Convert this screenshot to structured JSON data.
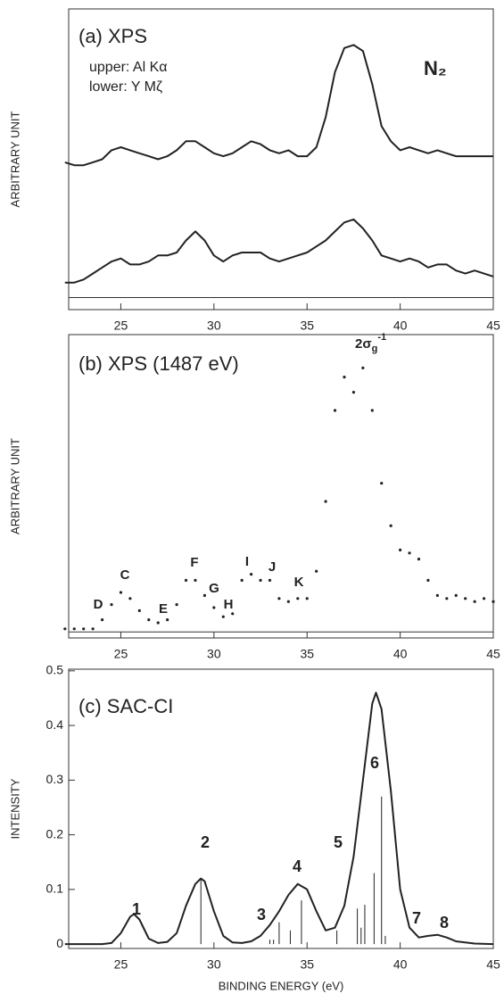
{
  "chart_data": [
    {
      "type": "line",
      "title": "(a) XPS",
      "subtitle": [
        "upper: Al Kα",
        "lower: Y Mζ"
      ],
      "label": "N₂",
      "ylabel": "ARBITRARY UNIT",
      "xlim": [
        22.2,
        45
      ],
      "xticks": [
        25,
        30,
        35,
        40,
        45
      ],
      "ylim": [
        -4,
        96
      ],
      "x": [
        22,
        22.5,
        23,
        23.5,
        24,
        24.5,
        25,
        25.5,
        26,
        26.5,
        27,
        27.5,
        28,
        28.5,
        29,
        29.5,
        30,
        30.5,
        31,
        31.5,
        32,
        32.5,
        33,
        33.5,
        34,
        34.5,
        35,
        35.5,
        36,
        36.5,
        37,
        37.5,
        38,
        38.5,
        39,
        39.5,
        40,
        40.5,
        41,
        41.5,
        42,
        42.5,
        43,
        43.5,
        44,
        44.5,
        45
      ],
      "series": [
        {
          "color": "#222222",
          "values": [
            45,
            44,
            44,
            45,
            46,
            49,
            50,
            49,
            48,
            47,
            46,
            47,
            49,
            52,
            52,
            50,
            48,
            47,
            48,
            50,
            52,
            51,
            49,
            48,
            49,
            47,
            47,
            50,
            60,
            75,
            83,
            84,
            82,
            71,
            57,
            52,
            49,
            50,
            49,
            48,
            49,
            48,
            47,
            47,
            47,
            47,
            47
          ]
        },
        {
          "color": "#222222",
          "values": [
            5,
            5,
            6,
            8,
            10,
            12,
            13,
            11,
            11,
            12,
            14,
            14,
            15,
            19,
            22,
            19,
            14,
            12,
            14,
            15,
            15,
            15,
            13,
            12,
            13,
            14,
            15,
            17,
            19,
            22,
            25,
            26,
            23,
            19,
            14,
            13,
            12,
            13,
            12,
            10,
            11,
            11,
            9,
            8,
            9,
            8,
            7
          ]
        }
      ]
    },
    {
      "type": "scatter",
      "title": "(b) XPS (1487 eV)",
      "ylabel": "ARBITRARY UNIT",
      "xlim": [
        22.2,
        45
      ],
      "xticks": [
        25,
        30,
        35,
        40,
        45
      ],
      "ylim": [
        -2,
        98
      ],
      "annotations": [
        "D",
        "C",
        "E",
        "F",
        "G",
        "H",
        "I",
        "J",
        "K"
      ],
      "peak_label": {
        "text": "2σ",
        "sub": "g",
        "sup": "-1"
      },
      "x": [
        22,
        22.5,
        23,
        23.5,
        24,
        24.5,
        25,
        25.5,
        26,
        26.5,
        27,
        27.5,
        28,
        28.5,
        29,
        29.5,
        30,
        30.5,
        31,
        31.5,
        32,
        32.5,
        33,
        33.5,
        34,
        34.5,
        35,
        35.5,
        36,
        36.5,
        37,
        37.5,
        38,
        38.5,
        39,
        39.5,
        40,
        40.5,
        41,
        41.5,
        42,
        42.5,
        43,
        43.5,
        44,
        44.5,
        45
      ],
      "series": [
        {
          "color": "#222222",
          "values": [
            1,
            1,
            1,
            1,
            4,
            9,
            13,
            11,
            7,
            4,
            3,
            4,
            9,
            17,
            17,
            12,
            8,
            5,
            6,
            17,
            19,
            17,
            17,
            11,
            10,
            11,
            11,
            20,
            43,
            73,
            84,
            79,
            87,
            73,
            49,
            35,
            27,
            26,
            24,
            17,
            12,
            11,
            12,
            11,
            10,
            11,
            10
          ]
        }
      ]
    },
    {
      "type": "line",
      "title": "(c) SAC-CI",
      "ylabel": "INTENSITY",
      "xlabel": "BINDING ENERGY (eV)",
      "xlim": [
        22.2,
        45
      ],
      "xticks": [
        25,
        30,
        35,
        40,
        45
      ],
      "ylim": [
        -0.008,
        0.503
      ],
      "yticks": [
        0,
        0.1,
        0.2,
        0.3,
        0.4,
        0.5
      ],
      "annotations": [
        "1",
        "2",
        "3",
        "4",
        "5",
        "6",
        "7",
        "8"
      ],
      "x": [
        22,
        24,
        24.5,
        25,
        25.5,
        25.7,
        26,
        26.5,
        27,
        27.5,
        28,
        28.5,
        29,
        29.3,
        29.5,
        30,
        30.5,
        31,
        31.5,
        32,
        32.5,
        33,
        33.5,
        34,
        34.5,
        35,
        35.5,
        36,
        36.5,
        37,
        37.5,
        38,
        38.5,
        38.7,
        39,
        39.5,
        40,
        40.5,
        41,
        41.5,
        42,
        42.5,
        43,
        44,
        45
      ],
      "series": [
        {
          "color": "#222222",
          "values": [
            0,
            0,
            0.002,
            0.02,
            0.05,
            0.055,
            0.045,
            0.01,
            0.002,
            0.004,
            0.02,
            0.07,
            0.11,
            0.12,
            0.115,
            0.06,
            0.015,
            0.003,
            0.002,
            0.005,
            0.015,
            0.035,
            0.06,
            0.09,
            0.11,
            0.1,
            0.06,
            0.025,
            0.03,
            0.07,
            0.16,
            0.3,
            0.44,
            0.46,
            0.43,
            0.28,
            0.1,
            0.03,
            0.012,
            0.015,
            0.017,
            0.012,
            0.005,
            0.001,
            0
          ]
        }
      ],
      "sticks": {
        "color": "#222222",
        "x": [
          29.3,
          33,
          33.2,
          33.5,
          34.1,
          34.7,
          36.6,
          37.7,
          37.9,
          38.1,
          38.6,
          39,
          39.2
        ],
        "values": [
          0.12,
          0.008,
          0.008,
          0.04,
          0.025,
          0.08,
          0.025,
          0.065,
          0.03,
          0.072,
          0.13,
          0.27,
          0.015
        ]
      }
    }
  ]
}
